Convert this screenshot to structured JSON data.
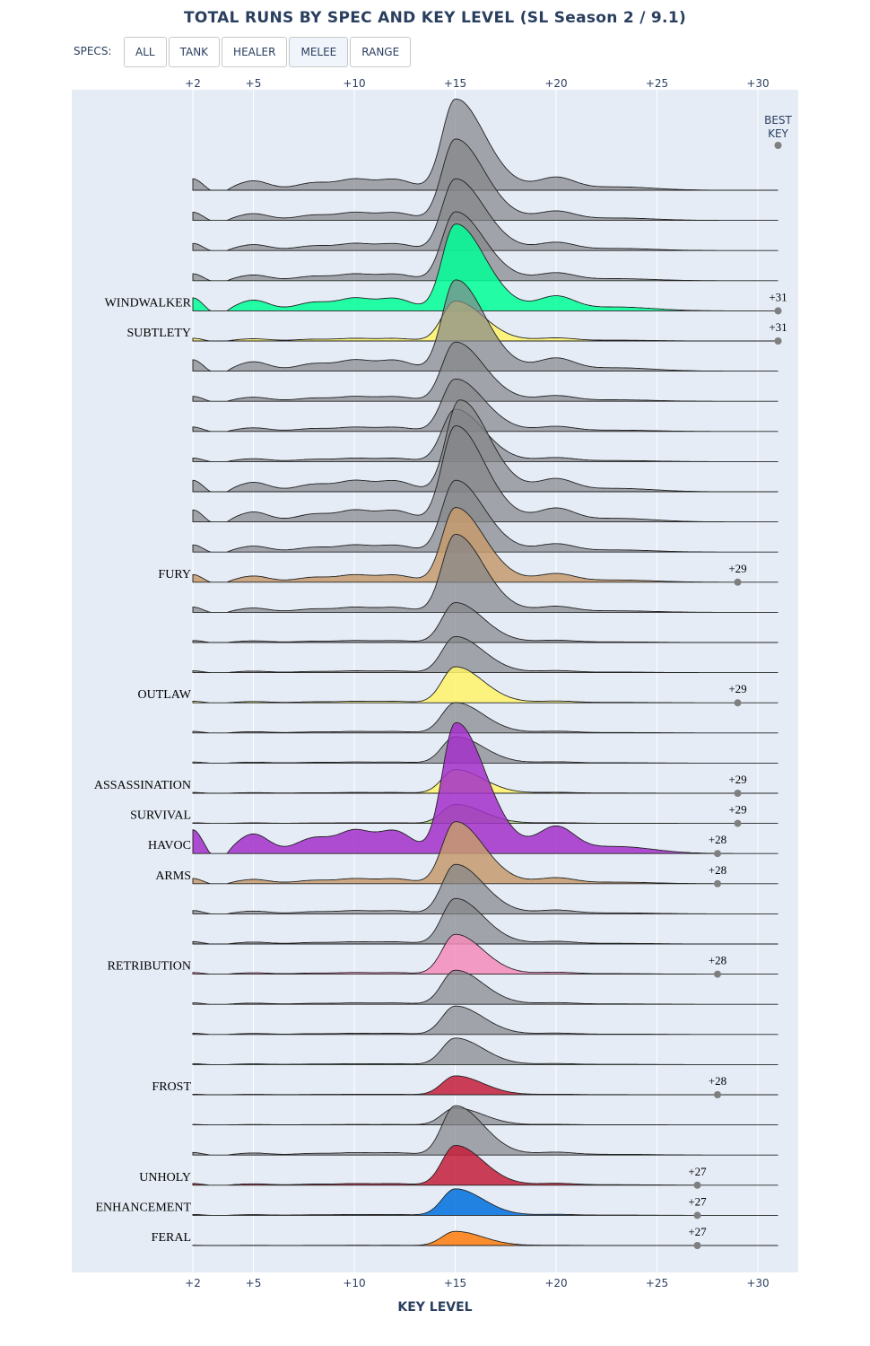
{
  "title": "TOTAL RUNS BY SPEC AND KEY LEVEL (SL Season 2 / 9.1)",
  "specs_filter": {
    "label": "SPECS:",
    "buttons": [
      {
        "label": "ALL",
        "active": false
      },
      {
        "label": "TANK",
        "active": false
      },
      {
        "label": "HEALER",
        "active": false
      },
      {
        "label": "MELEE",
        "active": true
      },
      {
        "label": "RANGE",
        "active": false
      }
    ]
  },
  "chart_data": {
    "type": "ridgeline",
    "xlabel": "KEY LEVEL",
    "xlim": [
      2,
      31
    ],
    "x_ticks": [
      2,
      5,
      10,
      15,
      20,
      25,
      30
    ],
    "x_tick_labels": [
      "+2",
      "+5",
      "+10",
      "+15",
      "+20",
      "+25",
      "+30"
    ],
    "best_key_header": [
      "BEST",
      "KEY"
    ],
    "best_key_header_x": 31,
    "colors": {
      "background": "#e5ecf6",
      "grid": "#ffffff",
      "inactive_fill": "#838589",
      "inactive_opacity": 0.7,
      "outline": "#222222",
      "best_marker": "#7f7f7f"
    },
    "series": [
      {
        "name": "",
        "highlighted": false,
        "amplitude": 0.95,
        "peak_offset": 0.0,
        "secondary": 0.15,
        "best_key": null
      },
      {
        "name": "",
        "highlighted": false,
        "amplitude": 0.85,
        "peak_offset": 0.0,
        "secondary": 0.12,
        "best_key": null
      },
      {
        "name": "",
        "highlighted": false,
        "amplitude": 0.75,
        "peak_offset": 0.0,
        "secondary": 0.12,
        "best_key": null
      },
      {
        "name": "",
        "highlighted": false,
        "amplitude": 0.72,
        "peak_offset": 0.0,
        "secondary": 0.12,
        "best_key": null
      },
      {
        "name": "WINDWALKER",
        "highlighted": true,
        "color": "#00ff96",
        "amplitude": 0.9,
        "peak_offset": 0.0,
        "secondary": 0.18,
        "best_key": 31
      },
      {
        "name": "SUBTLETY",
        "highlighted": true,
        "color": "#fff468",
        "amplitude": 0.42,
        "peak_offset": 0.0,
        "secondary": 0.08,
        "best_key": 31
      },
      {
        "name": "",
        "highlighted": false,
        "amplitude": 0.95,
        "peak_offset": 0.0,
        "secondary": 0.15,
        "best_key": null
      },
      {
        "name": "",
        "highlighted": false,
        "amplitude": 0.62,
        "peak_offset": 0.0,
        "secondary": 0.1,
        "best_key": null
      },
      {
        "name": "",
        "highlighted": false,
        "amplitude": 0.55,
        "peak_offset": 0.0,
        "secondary": 0.1,
        "best_key": null
      },
      {
        "name": "",
        "highlighted": false,
        "amplitude": 0.55,
        "peak_offset": 0.0,
        "secondary": 0.08,
        "best_key": null
      },
      {
        "name": "",
        "highlighted": false,
        "amplitude": 0.95,
        "peak_offset": 0.2,
        "secondary": 0.15,
        "best_key": null
      },
      {
        "name": "",
        "highlighted": false,
        "amplitude": 1.0,
        "peak_offset": 0.0,
        "secondary": 0.15,
        "best_key": null
      },
      {
        "name": "",
        "highlighted": false,
        "amplitude": 0.75,
        "peak_offset": 0.0,
        "secondary": 0.12,
        "best_key": null
      },
      {
        "name": "FURY",
        "highlighted": true,
        "color": "#c69b6d",
        "amplitude": 0.78,
        "peak_offset": 0.0,
        "secondary": 0.12,
        "best_key": 29
      },
      {
        "name": "",
        "highlighted": false,
        "amplitude": 0.82,
        "peak_offset": 0.0,
        "secondary": 0.08,
        "best_key": null
      },
      {
        "name": "",
        "highlighted": false,
        "amplitude": 0.42,
        "peak_offset": 0.0,
        "secondary": 0.06,
        "best_key": null
      },
      {
        "name": "",
        "highlighted": false,
        "amplitude": 0.38,
        "peak_offset": 0.0,
        "secondary": 0.06,
        "best_key": null
      },
      {
        "name": "OUTLAW",
        "highlighted": true,
        "color": "#fff468",
        "amplitude": 0.38,
        "peak_offset": 0.0,
        "secondary": 0.05,
        "best_key": 29
      },
      {
        "name": "",
        "highlighted": false,
        "amplitude": 0.32,
        "peak_offset": 0.0,
        "secondary": 0.06,
        "best_key": null
      },
      {
        "name": "",
        "highlighted": false,
        "amplitude": 0.28,
        "peak_offset": 0.0,
        "secondary": 0.05,
        "best_key": null
      },
      {
        "name": "ASSASSINATION",
        "highlighted": true,
        "color": "#fff468",
        "amplitude": 0.25,
        "peak_offset": 0.0,
        "secondary": 0.04,
        "best_key": 29
      },
      {
        "name": "SURVIVAL",
        "highlighted": true,
        "color": "#aad372",
        "amplitude": 0.2,
        "peak_offset": 0.0,
        "secondary": 0.04,
        "best_key": 29
      },
      {
        "name": "HAVOC",
        "highlighted": true,
        "color": "#a330c9",
        "amplitude": 1.35,
        "peak_offset": 0.0,
        "secondary": 0.22,
        "best_key": 28
      },
      {
        "name": "ARMS",
        "highlighted": true,
        "color": "#c69b6d",
        "amplitude": 0.65,
        "peak_offset": 0.0,
        "secondary": 0.1,
        "best_key": 28
      },
      {
        "name": "",
        "highlighted": false,
        "amplitude": 0.52,
        "peak_offset": 0.0,
        "secondary": 0.08,
        "best_key": null
      },
      {
        "name": "",
        "highlighted": false,
        "amplitude": 0.48,
        "peak_offset": 0.0,
        "secondary": 0.06,
        "best_key": null
      },
      {
        "name": "RETRIBUTION",
        "highlighted": true,
        "color": "#f48cba",
        "amplitude": 0.42,
        "peak_offset": 0.0,
        "secondary": 0.05,
        "best_key": 28
      },
      {
        "name": "",
        "highlighted": false,
        "amplitude": 0.36,
        "peak_offset": 0.0,
        "secondary": 0.05,
        "best_key": null
      },
      {
        "name": "",
        "highlighted": false,
        "amplitude": 0.3,
        "peak_offset": 0.0,
        "secondary": 0.05,
        "best_key": null
      },
      {
        "name": "",
        "highlighted": false,
        "amplitude": 0.28,
        "peak_offset": 0.0,
        "secondary": 0.04,
        "best_key": null
      },
      {
        "name": "FROST",
        "highlighted": true,
        "color": "#c41e3a",
        "amplitude": 0.2,
        "peak_offset": 0.0,
        "secondary": 0.03,
        "best_key": 28
      },
      {
        "name": "",
        "highlighted": false,
        "amplitude": 0.18,
        "peak_offset": 0.0,
        "secondary": 0.03,
        "best_key": null
      },
      {
        "name": "",
        "highlighted": false,
        "amplitude": 0.52,
        "peak_offset": 0.0,
        "secondary": 0.06,
        "best_key": null
      },
      {
        "name": "UNHOLY",
        "highlighted": true,
        "color": "#c41e3a",
        "amplitude": 0.42,
        "peak_offset": 0.0,
        "secondary": 0.05,
        "best_key": 27
      },
      {
        "name": "ENHANCEMENT",
        "highlighted": true,
        "color": "#0070dd",
        "amplitude": 0.28,
        "peak_offset": 0.0,
        "secondary": 0.04,
        "best_key": 27
      },
      {
        "name": "FERAL",
        "highlighted": true,
        "color": "#ff7c0a",
        "amplitude": 0.15,
        "peak_offset": 0.0,
        "secondary": 0.02,
        "best_key": 27
      }
    ]
  }
}
